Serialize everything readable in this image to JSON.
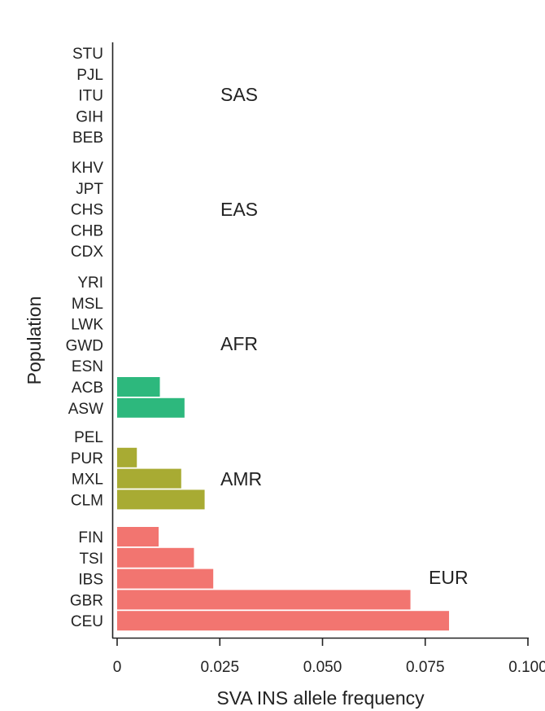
{
  "chart_data": {
    "type": "bar",
    "orientation": "horizontal",
    "xlabel": "SVA INS allele frequency",
    "ylabel": "Population",
    "xlim": [
      0,
      0.1
    ],
    "xticks": [
      0,
      0.025,
      0.05,
      0.075,
      0.1
    ],
    "xtick_labels": [
      "0",
      "0.025",
      "0.050",
      "0.075",
      "0.100"
    ],
    "colors": {
      "AFR": "#2db87d",
      "AMR": "#a8ab33",
      "EUR": "#f27570"
    },
    "groups": [
      {
        "name": "SAS",
        "populations": [
          {
            "label": "STU",
            "value": 0
          },
          {
            "label": "PJL",
            "value": 0
          },
          {
            "label": "ITU",
            "value": 0
          },
          {
            "label": "GIH",
            "value": 0
          },
          {
            "label": "BEB",
            "value": 0
          }
        ]
      },
      {
        "name": "EAS",
        "populations": [
          {
            "label": "KHV",
            "value": 0
          },
          {
            "label": "JPT",
            "value": 0
          },
          {
            "label": "CHS",
            "value": 0
          },
          {
            "label": "CHB",
            "value": 0
          },
          {
            "label": "CDX",
            "value": 0
          }
        ]
      },
      {
        "name": "AFR",
        "populations": [
          {
            "label": "YRI",
            "value": 0
          },
          {
            "label": "MSL",
            "value": 0
          },
          {
            "label": "LWK",
            "value": 0
          },
          {
            "label": "GWD",
            "value": 0
          },
          {
            "label": "ESN",
            "value": 0
          },
          {
            "label": "ACB",
            "value": 0.0104
          },
          {
            "label": "ASW",
            "value": 0.0164
          }
        ]
      },
      {
        "name": "AMR",
        "populations": [
          {
            "label": "PEL",
            "value": 0
          },
          {
            "label": "PUR",
            "value": 0.0048
          },
          {
            "label": "MXL",
            "value": 0.0156
          },
          {
            "label": "CLM",
            "value": 0.0213
          }
        ]
      },
      {
        "name": "EUR",
        "populations": [
          {
            "label": "FIN",
            "value": 0.0101
          },
          {
            "label": "TSI",
            "value": 0.0187
          },
          {
            "label": "IBS",
            "value": 0.0234
          },
          {
            "label": "GBR",
            "value": 0.0714
          },
          {
            "label": "CEU",
            "value": 0.0808
          }
        ]
      }
    ]
  }
}
